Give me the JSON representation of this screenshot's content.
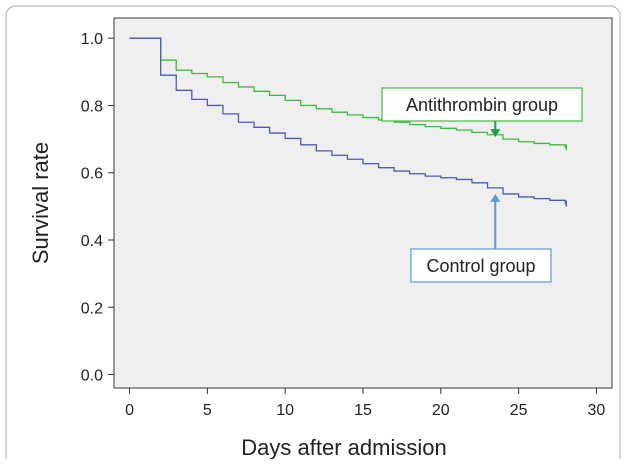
{
  "chart_data": {
    "type": "line",
    "step": true,
    "title": "",
    "xlabel": "Days after admission",
    "ylabel": "Survival rate",
    "xlim": [
      -1,
      31
    ],
    "ylim": [
      -0.04,
      1.06
    ],
    "x_ticks": [
      0,
      5,
      10,
      15,
      20,
      25,
      30
    ],
    "y_ticks": [
      0.0,
      0.2,
      0.4,
      0.6,
      0.8,
      1.0
    ],
    "y_tick_labels": [
      "0.0",
      "0.2",
      "0.4",
      "0.6",
      "0.8",
      "1.0"
    ],
    "grid": false,
    "background_color": "#efefef",
    "series": [
      {
        "name": "Antithrombin group",
        "color": "#3dbb3d",
        "x": [
          0,
          2,
          3,
          4,
          5,
          6,
          7,
          8,
          9,
          10,
          11,
          12,
          13,
          14,
          15,
          16,
          17,
          18,
          19,
          20,
          21,
          22,
          23,
          24,
          25,
          26,
          27,
          28
        ],
        "y": [
          1.0,
          0.935,
          0.905,
          0.895,
          0.885,
          0.868,
          0.855,
          0.842,
          0.83,
          0.815,
          0.8,
          0.79,
          0.78,
          0.772,
          0.764,
          0.757,
          0.75,
          0.743,
          0.737,
          0.732,
          0.727,
          0.72,
          0.713,
          0.7,
          0.692,
          0.687,
          0.683,
          0.675
        ]
      },
      {
        "name": "Control group",
        "color": "#4b5bb5",
        "x": [
          0,
          2,
          3,
          4,
          5,
          6,
          7,
          8,
          9,
          10,
          11,
          12,
          13,
          14,
          15,
          16,
          17,
          18,
          19,
          20,
          21,
          22,
          23,
          24,
          25,
          26,
          27,
          28
        ],
        "y": [
          1.0,
          0.89,
          0.845,
          0.818,
          0.8,
          0.775,
          0.75,
          0.735,
          0.718,
          0.702,
          0.683,
          0.665,
          0.652,
          0.64,
          0.627,
          0.615,
          0.605,
          0.597,
          0.59,
          0.585,
          0.58,
          0.57,
          0.555,
          0.537,
          0.528,
          0.523,
          0.518,
          0.508
        ]
      }
    ],
    "annotations": [
      {
        "text": "Antithrombin group",
        "series": 0,
        "arrow_color": "#1aa04a",
        "border_color": "#3dbb3d",
        "points_to": {
          "x": 23.5,
          "y": 0.703
        }
      },
      {
        "text": "Control group",
        "series": 1,
        "arrow_color": "#5b9bd5",
        "border_color": "#5b9bd5",
        "points_to": {
          "x": 23.5,
          "y": 0.54
        }
      }
    ]
  }
}
